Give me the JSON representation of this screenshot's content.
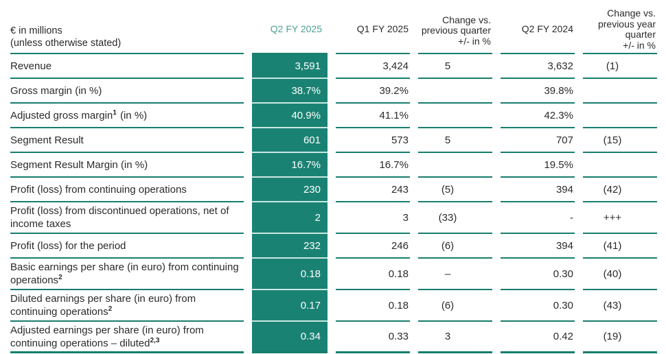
{
  "table": {
    "unit_header": "€ in millions\n(unless otherwise stated)",
    "columns": {
      "q2fy25": "Q2 FY 2025",
      "q1fy25": "Q1 FY 2025",
      "chg_qoq": "Change vs.\nprevious quarter\n+/- in %",
      "q2fy24": "Q2 FY 2024",
      "chg_yoy": "Change vs.\nprevious year\nquarter\n+/- in %"
    },
    "rows": [
      {
        "label_pre": "Revenue",
        "label_sup": "",
        "label_post": "",
        "q2fy25": "3,591",
        "q1fy25": "3,424",
        "chg_qoq": "5",
        "q2fy24": "3,632",
        "chg_yoy": "(1)"
      },
      {
        "label_pre": "Gross margin (in %)",
        "label_sup": "",
        "label_post": "",
        "q2fy25": "38.7%",
        "q1fy25": "39.2%",
        "chg_qoq": "",
        "q2fy24": "39.8%",
        "chg_yoy": ""
      },
      {
        "label_pre": "Adjusted gross margin",
        "label_sup": "1",
        "label_post": " (in %)",
        "q2fy25": "40.9%",
        "q1fy25": "41.1%",
        "chg_qoq": "",
        "q2fy24": "42.3%",
        "chg_yoy": ""
      },
      {
        "label_pre": "Segment Result",
        "label_sup": "",
        "label_post": "",
        "q2fy25": "601",
        "q1fy25": "573",
        "chg_qoq": "5",
        "q2fy24": "707",
        "chg_yoy": "(15)"
      },
      {
        "label_pre": "Segment Result Margin (in %)",
        "label_sup": "",
        "label_post": "",
        "q2fy25": "16.7%",
        "q1fy25": "16.7%",
        "chg_qoq": "",
        "q2fy24": "19.5%",
        "chg_yoy": ""
      },
      {
        "label_pre": "Profit (loss) from continuing operations",
        "label_sup": "",
        "label_post": "",
        "q2fy25": "230",
        "q1fy25": "243",
        "chg_qoq": "(5)",
        "q2fy24": "394",
        "chg_yoy": "(42)"
      },
      {
        "label_pre": "Profit (loss) from discontinued operations, net of income taxes",
        "label_sup": "",
        "label_post": "",
        "q2fy25": "2",
        "q1fy25": "3",
        "chg_qoq": "(33)",
        "q2fy24": "-",
        "chg_yoy": "+++"
      },
      {
        "label_pre": "Profit (loss) for the period",
        "label_sup": "",
        "label_post": "",
        "q2fy25": "232",
        "q1fy25": "246",
        "chg_qoq": "(6)",
        "q2fy24": "394",
        "chg_yoy": "(41)"
      },
      {
        "label_pre": "Basic earnings per share (in euro) from continuing operations",
        "label_sup": "2",
        "label_post": "",
        "q2fy25": "0.18",
        "q1fy25": "0.18",
        "chg_qoq": "–",
        "q2fy24": "0.30",
        "chg_yoy": "(40)"
      },
      {
        "label_pre": "Diluted earnings per share (in euro) from continuing operations",
        "label_sup": "2",
        "label_post": "",
        "q2fy25": "0.17",
        "q1fy25": "0.18",
        "chg_qoq": "(6)",
        "q2fy24": "0.30",
        "chg_yoy": "(43)"
      },
      {
        "label_pre": "Adjusted earnings per share (in euro) from continuing operations – diluted",
        "label_sup": "2,3",
        "label_post": "",
        "q2fy25": "0.34",
        "q1fy25": "0.33",
        "chg_qoq": "3",
        "q2fy24": "0.42",
        "chg_yoy": "(19)"
      }
    ]
  },
  "colors": {
    "accent_fill": "#1A8273",
    "rule_line": "#177D6D",
    "accent_band_separator": "#CBE9E3",
    "accent_header_text": "#4DA094",
    "text": "#2A2A2A",
    "value_on_accent": "#FFFFFF",
    "background": "#FFFFFF"
  }
}
